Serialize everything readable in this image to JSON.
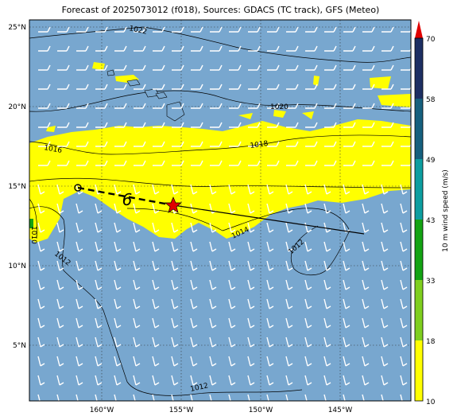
{
  "title": "Forecast of 2025073012 (f018), Sources: GDACS (TC track), GFS (Meteo)",
  "lat_labels": [
    "25°N",
    "20°N",
    "15°N",
    "10°N",
    "5°N"
  ],
  "lon_labels": [
    "160°W",
    "155°W",
    "150°W",
    "145°W"
  ],
  "isobar_labels": [
    "1022",
    "1020",
    "1018",
    "1016",
    "1014",
    "1012",
    "1012",
    "1012",
    "1010"
  ],
  "colorbar": {
    "label": "10 m wind speed (m/s)",
    "ticks": [
      "10",
      "18",
      "33",
      "43",
      "49",
      "58",
      "70"
    ],
    "colors": [
      "#ffff00",
      "#7fcf1f",
      "#13a313",
      "#0d9ea0",
      "#16607e",
      "#1d4f7a",
      "#1d2f63",
      "#e00000"
    ]
  },
  "track": {
    "past_points": [
      [
        -161.5,
        14.9
      ],
      [
        -155.5,
        13.8
      ]
    ],
    "forecast_points": [
      [
        -155.5,
        13.8
      ],
      [
        -143.5,
        12.0
      ]
    ],
    "current_marker": "red-star",
    "storm_symbol": "6"
  },
  "colors": {
    "ocean": "#78a7cf",
    "high_wind": "#ffff00",
    "track": "#000000",
    "star": "#e00000"
  }
}
